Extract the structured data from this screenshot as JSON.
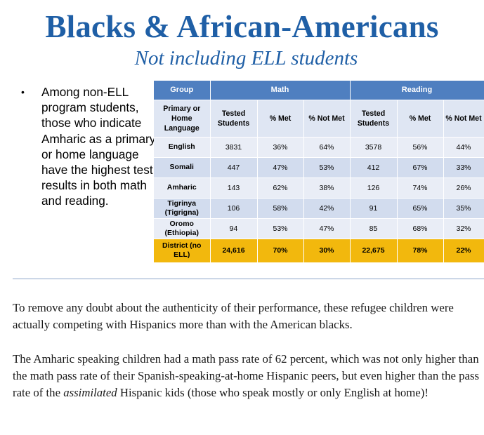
{
  "title": "Blacks & African-Americans",
  "subtitle": "Not including ELL students",
  "bullet": {
    "marker": "•",
    "text": "Among non-ELL program students, those who indicate Amharic as a primary or home language have the highest test results in both math and reading."
  },
  "table": {
    "group_header": "Group",
    "math_header": "Math",
    "reading_header": "Reading",
    "sub_headers": {
      "language": "Primary or Home Language",
      "math_tested": "Tested Students",
      "math_met": "% Met",
      "math_not_met": "% Not Met",
      "reading_tested": "Tested Students",
      "reading_met": "% Met",
      "reading_not_met": "% Not Met"
    },
    "rows": [
      {
        "language": "English",
        "math_tested": "3831",
        "math_met": "36%",
        "math_not_met": "64%",
        "reading_tested": "3578",
        "reading_met": "56%",
        "reading_not_met": "44%"
      },
      {
        "language": "Somali",
        "math_tested": "447",
        "math_met": "47%",
        "math_not_met": "53%",
        "reading_tested": "412",
        "reading_met": "67%",
        "reading_not_met": "33%"
      },
      {
        "language": "Amharic",
        "math_tested": "143",
        "math_met": "62%",
        "math_not_met": "38%",
        "reading_tested": "126",
        "reading_met": "74%",
        "reading_not_met": "26%"
      },
      {
        "language": "Tigrinya (Tigrigna)",
        "math_tested": "106",
        "math_met": "58%",
        "math_not_met": "42%",
        "reading_tested": "91",
        "reading_met": "65%",
        "reading_not_met": "35%"
      },
      {
        "language": "Oromo (Ethiopia)",
        "math_tested": "94",
        "math_met": "53%",
        "math_not_met": "47%",
        "reading_tested": "85",
        "reading_met": "68%",
        "reading_not_met": "32%"
      }
    ],
    "total": {
      "language": "District (no ELL)",
      "math_tested": "24,616",
      "math_met": "70%",
      "math_not_met": "30%",
      "reading_tested": "22,675",
      "reading_met": "78%",
      "reading_not_met": "22%"
    }
  },
  "paragraphs": {
    "p1": "To remove any doubt about the authenticity of their performance, these refugee children were actually competing with Hispanics more than with the American blacks.",
    "p2_before": "The Amharic speaking children had a math pass rate of 62 percent, which was not only higher than the math pass rate of their Spanish-speaking-at-home Hispanic peers, but even higher than the pass rate of the ",
    "p2_emphasis": "assimilated",
    "p2_after": " Hispanic kids (those who speak mostly or only English at home)!"
  }
}
